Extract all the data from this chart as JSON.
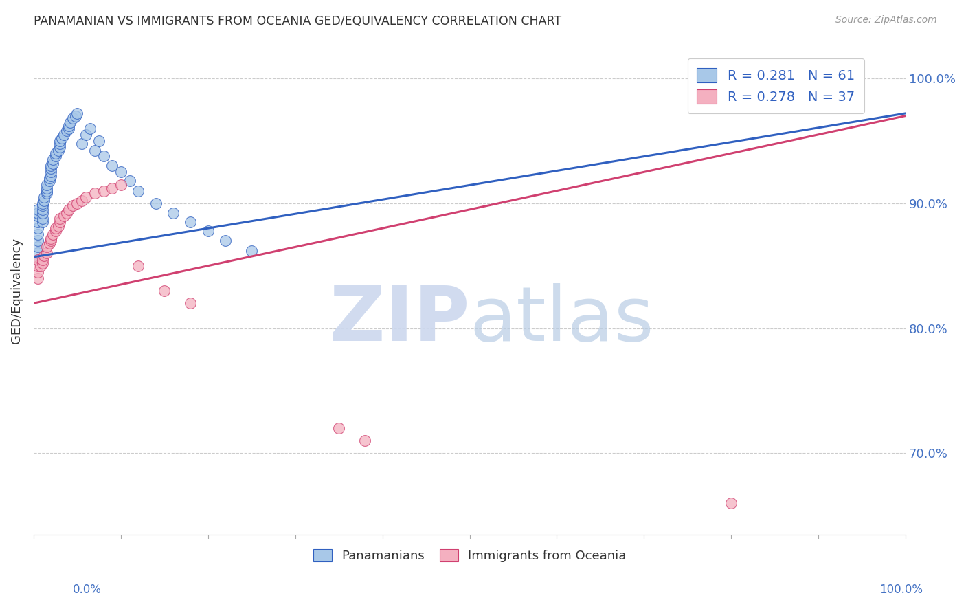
{
  "title": "PANAMANIAN VS IMMIGRANTS FROM OCEANIA GED/EQUIVALENCY CORRELATION CHART",
  "source": "Source: ZipAtlas.com",
  "ylabel": "GED/Equivalency",
  "ytick_labels": [
    "70.0%",
    "80.0%",
    "90.0%",
    "100.0%"
  ],
  "ytick_values": [
    0.7,
    0.8,
    0.9,
    1.0
  ],
  "legend_blue": "R = 0.281   N = 61",
  "legend_pink": "R = 0.278   N = 37",
  "blue_color": "#a8c8e8",
  "pink_color": "#f4b0c0",
  "trendline_blue": "#3060c0",
  "trendline_pink": "#d04070",
  "blue_scatter_x": [
    0.005,
    0.005,
    0.005,
    0.005,
    0.005,
    0.005,
    0.005,
    0.005,
    0.005,
    0.005,
    0.01,
    0.01,
    0.01,
    0.01,
    0.01,
    0.01,
    0.012,
    0.012,
    0.015,
    0.015,
    0.015,
    0.015,
    0.018,
    0.018,
    0.02,
    0.02,
    0.02,
    0.02,
    0.022,
    0.022,
    0.025,
    0.025,
    0.028,
    0.03,
    0.03,
    0.03,
    0.032,
    0.035,
    0.038,
    0.04,
    0.04,
    0.042,
    0.045,
    0.048,
    0.05,
    0.055,
    0.06,
    0.065,
    0.07,
    0.075,
    0.08,
    0.09,
    0.1,
    0.11,
    0.12,
    0.14,
    0.16,
    0.18,
    0.2,
    0.22,
    0.25
  ],
  "blue_scatter_y": [
    0.855,
    0.86,
    0.865,
    0.87,
    0.875,
    0.88,
    0.885,
    0.89,
    0.892,
    0.895,
    0.885,
    0.888,
    0.892,
    0.895,
    0.898,
    0.9,
    0.902,
    0.905,
    0.908,
    0.91,
    0.912,
    0.915,
    0.918,
    0.92,
    0.922,
    0.925,
    0.928,
    0.93,
    0.932,
    0.935,
    0.938,
    0.94,
    0.942,
    0.945,
    0.948,
    0.95,
    0.952,
    0.955,
    0.958,
    0.96,
    0.962,
    0.965,
    0.968,
    0.97,
    0.972,
    0.948,
    0.955,
    0.96,
    0.942,
    0.95,
    0.938,
    0.93,
    0.925,
    0.918,
    0.91,
    0.9,
    0.892,
    0.885,
    0.878,
    0.87,
    0.862
  ],
  "pink_scatter_x": [
    0.005,
    0.005,
    0.005,
    0.005,
    0.008,
    0.01,
    0.01,
    0.012,
    0.015,
    0.015,
    0.018,
    0.02,
    0.02,
    0.022,
    0.025,
    0.025,
    0.028,
    0.03,
    0.03,
    0.035,
    0.038,
    0.04,
    0.045,
    0.05,
    0.055,
    0.06,
    0.07,
    0.08,
    0.09,
    0.1,
    0.12,
    0.15,
    0.18,
    0.35,
    0.38,
    0.78,
    0.8
  ],
  "pink_scatter_y": [
    0.84,
    0.845,
    0.85,
    0.855,
    0.85,
    0.852,
    0.855,
    0.858,
    0.86,
    0.865,
    0.868,
    0.87,
    0.872,
    0.875,
    0.878,
    0.88,
    0.882,
    0.885,
    0.888,
    0.89,
    0.892,
    0.895,
    0.898,
    0.9,
    0.902,
    0.905,
    0.908,
    0.91,
    0.912,
    0.915,
    0.85,
    0.83,
    0.82,
    0.72,
    0.71,
    0.995,
    0.66
  ],
  "blue_trend_x0": 0.0,
  "blue_trend_x1": 1.0,
  "blue_trend_y0": 0.857,
  "blue_trend_y1": 0.972,
  "pink_trend_x0": 0.0,
  "pink_trend_x1": 1.0,
  "pink_trend_y0": 0.82,
  "pink_trend_y1": 0.97,
  "xlim": [
    0.0,
    1.0
  ],
  "ylim": [
    0.635,
    1.025
  ],
  "xtick_positions": [
    0.0,
    0.1,
    0.2,
    0.3,
    0.4,
    0.5,
    0.6,
    0.7,
    0.8,
    0.9,
    1.0
  ],
  "watermark_zip_color": "#ccd8ee",
  "watermark_atlas_color": "#b8cce4",
  "background_color": "#ffffff",
  "grid_color": "#cccccc",
  "tick_label_color": "#4472c4",
  "title_color": "#333333",
  "source_color": "#999999"
}
